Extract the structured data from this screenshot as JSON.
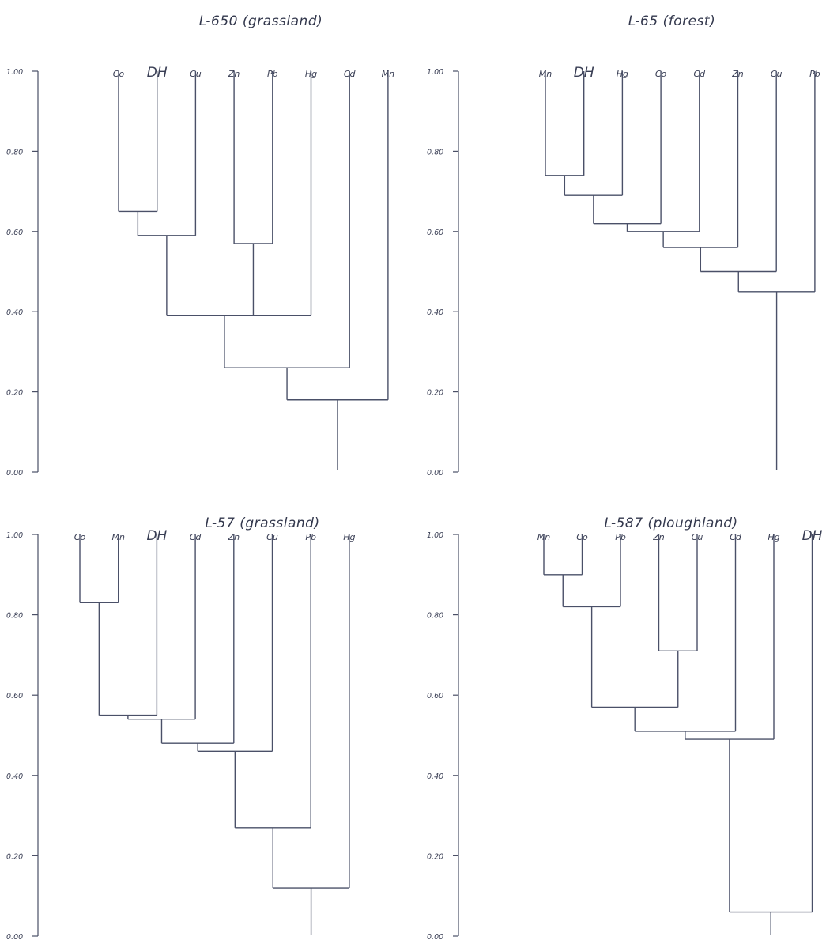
{
  "chart_data": [
    {
      "type": "dendrogram",
      "title": "L-650 (grassland)",
      "ylim": [
        0,
        1
      ],
      "yticks": [
        "0.00",
        "0.20",
        "0.40",
        "0.60",
        "0.80",
        "1.00"
      ],
      "leaves": [
        "Co",
        "DH",
        "Cu",
        "Zn",
        "Pb",
        "Hg",
        "Cd",
        "Mn"
      ],
      "merges": [
        {
          "a": "Co",
          "b": "DH",
          "similarity": 0.65
        },
        {
          "a": "Zn",
          "b": "Pb",
          "similarity": 0.57
        },
        {
          "a": "Co+DH",
          "b": "Cu",
          "similarity": 0.59
        },
        {
          "a": "Zn+Pb",
          "b": "Hg",
          "similarity": 0.39
        },
        {
          "a": "Co+DH+Cu",
          "b": "Zn+Pb+Hg",
          "similarity": 0.39
        },
        {
          "a": "Co+DH+Cu+Zn+Pb+Hg",
          "b": "Cd",
          "similarity": 0.26
        },
        {
          "a": "Co+DH+Cu+Zn+Pb+Hg+Cd",
          "b": "Mn",
          "similarity": 0.18
        }
      ]
    },
    {
      "type": "dendrogram",
      "title": "L-65 (forest)",
      "ylim": [
        0,
        1
      ],
      "yticks": [
        "0.00",
        "0.20",
        "0.40",
        "0.60",
        "0.80",
        "1.00"
      ],
      "leaves": [
        "Mn",
        "DH",
        "Hg",
        "Co",
        "Cd",
        "Zn",
        "Cu",
        "Pb"
      ],
      "merges": [
        {
          "a": "Mn",
          "b": "DH",
          "similarity": 0.74
        },
        {
          "a": "Mn+DH",
          "b": "Hg",
          "similarity": 0.69
        },
        {
          "a": "Mn+DH+Hg",
          "b": "Co",
          "similarity": 0.62
        },
        {
          "a": "Mn+DH+Hg+Co",
          "b": "Cd",
          "similarity": 0.6
        },
        {
          "a": "Mn+DH+Hg+Co+Cd",
          "b": "Zn",
          "similarity": 0.56
        },
        {
          "a": "Mn+DH+Hg+Co+Cd+Zn",
          "b": "Cu",
          "similarity": 0.5
        },
        {
          "a": "Mn+DH+Hg+Co+Cd+Zn+Cu",
          "b": "Pb",
          "similarity": 0.45
        }
      ]
    },
    {
      "type": "dendrogram",
      "title": "L-57 (grassland)",
      "ylim": [
        0,
        1
      ],
      "yticks": [
        "0.00",
        "0.20",
        "0.40",
        "0.60",
        "0.80",
        "1.00"
      ],
      "leaves": [
        "Co",
        "Mn",
        "DH",
        "Cd",
        "Zn",
        "Cu",
        "Pb",
        "Hg"
      ],
      "merges": [
        {
          "a": "Co",
          "b": "Mn",
          "similarity": 0.83
        },
        {
          "a": "Co+Mn",
          "b": "DH",
          "similarity": 0.55
        },
        {
          "a": "Co+Mn+DH",
          "b": "Cd",
          "similarity": 0.54
        },
        {
          "a": "Co+Mn+DH+Cd",
          "b": "Zn",
          "similarity": 0.48
        },
        {
          "a": "Co+Mn+DH+Cd+Zn",
          "b": "Cu",
          "similarity": 0.46
        },
        {
          "a": "Co+Mn+DH+Cd+Zn+Cu",
          "b": "Pb",
          "similarity": 0.27
        },
        {
          "a": "Co+Mn+DH+Cd+Zn+Cu+Pb",
          "b": "Hg",
          "similarity": 0.12
        }
      ]
    },
    {
      "type": "dendrogram",
      "title": "L-587 (ploughland)",
      "ylim": [
        0,
        1
      ],
      "yticks": [
        "0.00",
        "0.20",
        "0.40",
        "0.60",
        "0.80",
        "1.00"
      ],
      "leaves": [
        "Mn",
        "Co",
        "Pb",
        "Zn",
        "Cu",
        "Cd",
        "Hg",
        "DH"
      ],
      "merges": [
        {
          "a": "Mn",
          "b": "Co",
          "similarity": 0.9
        },
        {
          "a": "Zn",
          "b": "Cu",
          "similarity": 0.71
        },
        {
          "a": "Mn+Co",
          "b": "Pb",
          "similarity": 0.82
        },
        {
          "a": "Mn+Co+Pb",
          "b": "Zn+Cu",
          "similarity": 0.57
        },
        {
          "a": "Mn+Co+Pb+Zn+Cu",
          "b": "Cd",
          "similarity": 0.51
        },
        {
          "a": "Mn+Co+Pb+Zn+Cu+Cd",
          "b": "Hg",
          "similarity": 0.49
        },
        {
          "a": "Mn+Co+Pb+Zn+Cu+Cd+Hg",
          "b": "DH",
          "similarity": 0.06
        }
      ]
    }
  ]
}
